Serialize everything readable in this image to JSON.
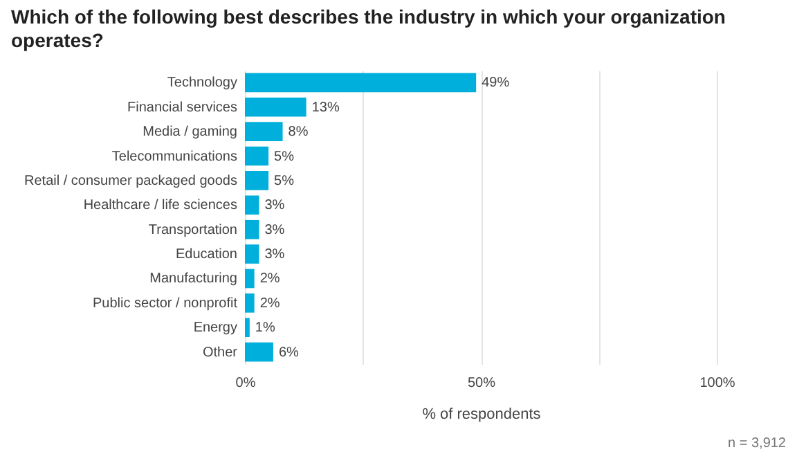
{
  "chart_data": {
    "type": "bar",
    "orientation": "horizontal",
    "title": "Which of the following best describes the industry in which your organization operates?",
    "xlabel": "% of respondents",
    "categories": [
      "Technology",
      "Financial services",
      "Media / gaming",
      "Telecommunications",
      "Retail / consumer packaged goods",
      "Healthcare / life sciences",
      "Transportation",
      "Education",
      "Manufacturing",
      "Public sector / nonprofit",
      "Energy",
      "Other"
    ],
    "values": [
      49,
      13,
      8,
      5,
      5,
      3,
      3,
      3,
      2,
      2,
      1,
      6
    ],
    "value_labels": [
      "49%",
      "13%",
      "8%",
      "5%",
      "5%",
      "3%",
      "3%",
      "3%",
      "2%",
      "2%",
      "1%",
      "6%"
    ],
    "color": "#00afdb",
    "xlim": [
      0,
      100
    ],
    "xticks": [
      {
        "value": 0,
        "label": "0%"
      },
      {
        "value": 25,
        "label": null
      },
      {
        "value": 50,
        "label": "50%"
      },
      {
        "value": 75,
        "label": null
      },
      {
        "value": 100,
        "label": "100%"
      }
    ],
    "grid": "x",
    "annotations": [
      "n =  3,912"
    ]
  }
}
